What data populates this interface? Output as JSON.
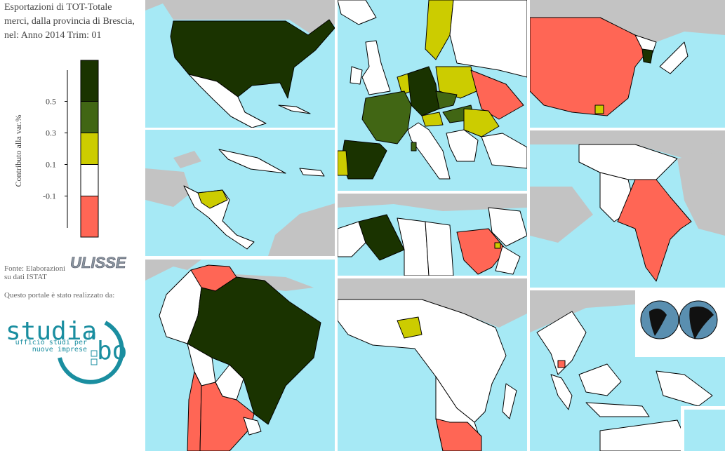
{
  "header": {
    "title_lines": [
      "Esportazioni di TOT-Totale",
      "merci, dalla provincia di Brescia,",
      "nel: Anno 2014 Trim: 01"
    ]
  },
  "legend": {
    "axis_label": "Contributo alla var.%",
    "ylim": [
      -0.36,
      0.76
    ],
    "yticks": [
      0.5,
      0.3,
      0.1,
      -0.1
    ],
    "colors": [
      "#1a3300",
      "#416614",
      "#cccc00",
      "#ffffff",
      "#ff6655"
    ]
  },
  "source": {
    "lines": [
      "Fonte: Elaborazioni",
      "su dati ISTAT"
    ],
    "logo": "ULISSE"
  },
  "credits": {
    "text": "Questo portale è stato realizzato da:",
    "logo_main": "studia",
    "logo_side": "bo",
    "logo_sub": [
      "ufficio studi per",
      "nuove imprese"
    ]
  }
}
